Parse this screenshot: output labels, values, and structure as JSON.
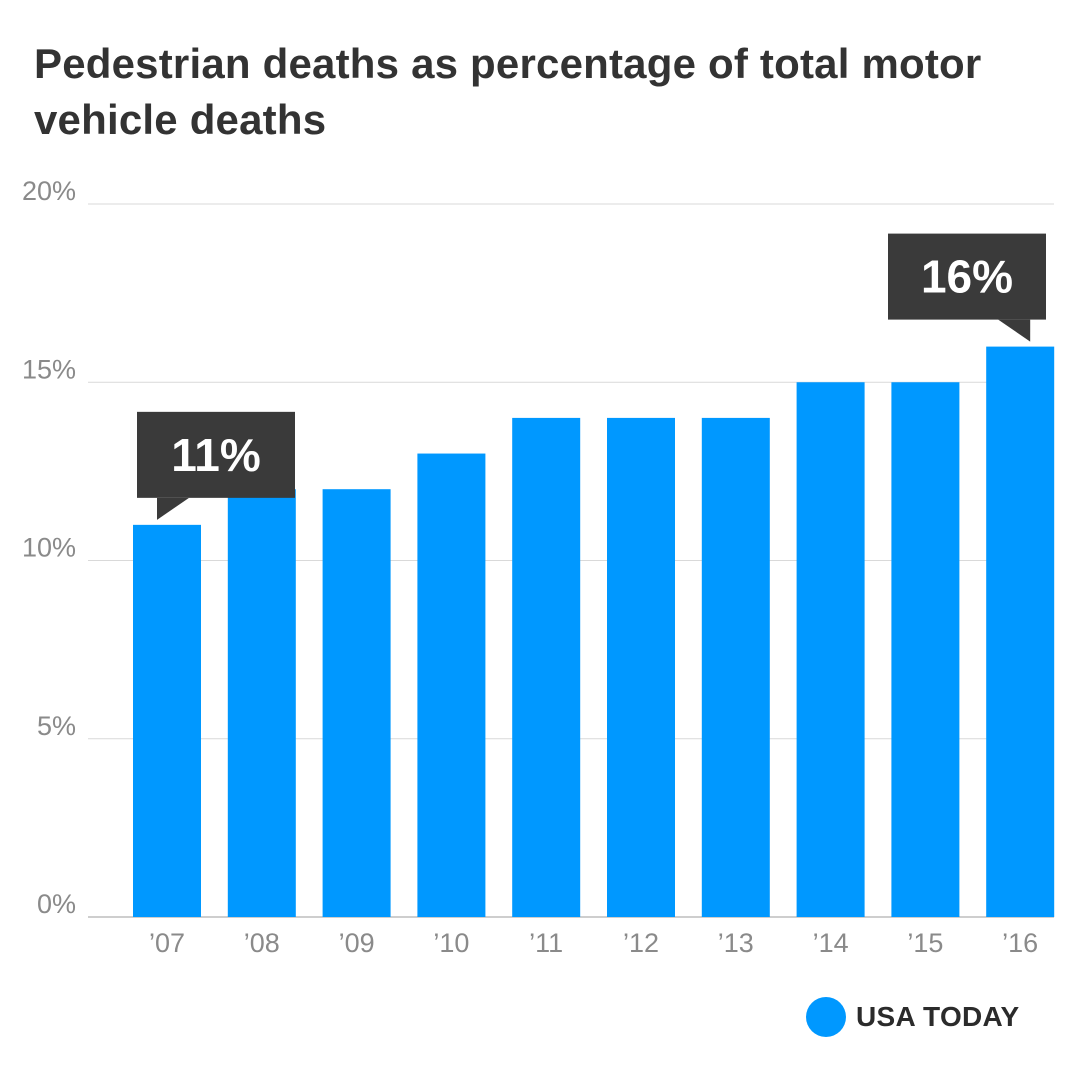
{
  "colors": {
    "bar": "#0098ff",
    "callout_bg": "#3a3a3a",
    "callout_text": "#ffffff",
    "title": "#333333",
    "tick": "#8a8a8a",
    "grid": "#d9d9d9",
    "axis": "#bdbdbd"
  },
  "chart_data": {
    "type": "bar",
    "title": "Pedestrian deaths as percentage of total motor vehicle deaths",
    "xlabel": "",
    "ylabel": "",
    "categories": [
      "’07",
      "’08",
      "’09",
      "’10",
      "’11",
      "’12",
      "’13",
      "’14",
      "’15",
      "’16"
    ],
    "values": [
      11,
      12,
      12,
      13,
      14,
      14,
      14,
      15,
      15,
      16
    ],
    "unit": "%",
    "ylim": [
      0,
      20
    ],
    "y_ticks": [
      0,
      5,
      10,
      15,
      20
    ],
    "y_tick_labels": [
      "0%",
      "5%",
      "10%",
      "15%",
      "20%"
    ],
    "grid": true,
    "annotations": [
      {
        "category_index": 0,
        "label": "11%"
      },
      {
        "category_index": 9,
        "label": "16%"
      }
    ]
  },
  "brand": {
    "icon": "brand-dot-icon",
    "name": "USA TODAY"
  }
}
